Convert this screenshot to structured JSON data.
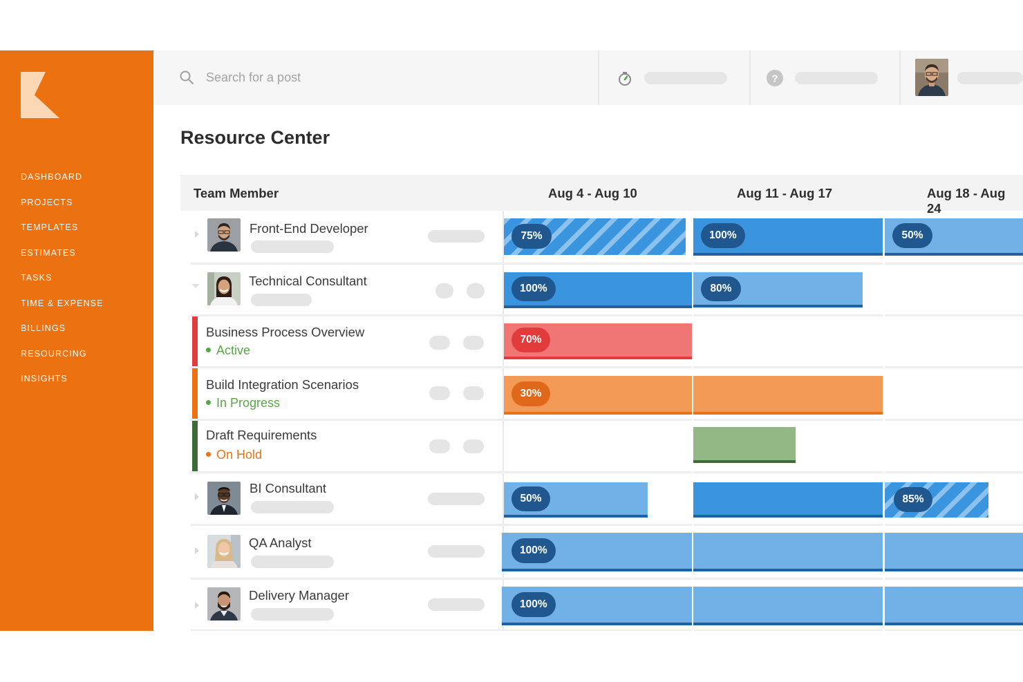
{
  "sidebar": {
    "nav": [
      "DASHBOARD",
      "PROJECTS",
      "TEMPLATES",
      "ESTIMATES",
      "TASKS",
      "TIME & EXPENSE",
      "BILLINGS",
      "RESOURCING",
      "INSIGHTS"
    ]
  },
  "topbar": {
    "search_placeholder": "Search for a post"
  },
  "page": {
    "title": "Resource Center"
  },
  "table": {
    "header": {
      "member": "Team Member",
      "weeks": [
        "Aug 4 - Aug 10",
        "Aug 11 - Aug 17",
        "Aug 18 - Aug 24"
      ]
    },
    "rows": [
      {
        "name": "Front-End Developer"
      },
      {
        "name": "Technical Consultant"
      },
      {
        "name": "Business Process Overview",
        "status": "Active"
      },
      {
        "name": "Build Integration Scenarios",
        "status": "In Progress"
      },
      {
        "name": "Draft Requirements",
        "status": "On Hold"
      },
      {
        "name": "BI Consultant"
      },
      {
        "name": "QA Analyst"
      },
      {
        "name": "Delivery Manager"
      }
    ]
  },
  "allocations": {
    "front_end": [
      "75%",
      "100%",
      "50%"
    ],
    "technical": [
      "100%",
      "80%"
    ],
    "business_process": [
      "70%"
    ],
    "build_integration": [
      "30%"
    ],
    "bi": [
      "50%",
      "85%"
    ],
    "qa": [
      "100%"
    ],
    "delivery": [
      "100%"
    ]
  },
  "colors": {
    "brand_orange": "#ec7211",
    "blue": "#3a94de",
    "light_blue": "#72b1e6",
    "badge_blue": "#20578e",
    "red": "#f07676",
    "badge_red": "#e23b3b",
    "orange_bar": "#f39a56",
    "green_bar": "#94b786",
    "status_green": "#5aa447",
    "status_orange": "#ec7211"
  }
}
